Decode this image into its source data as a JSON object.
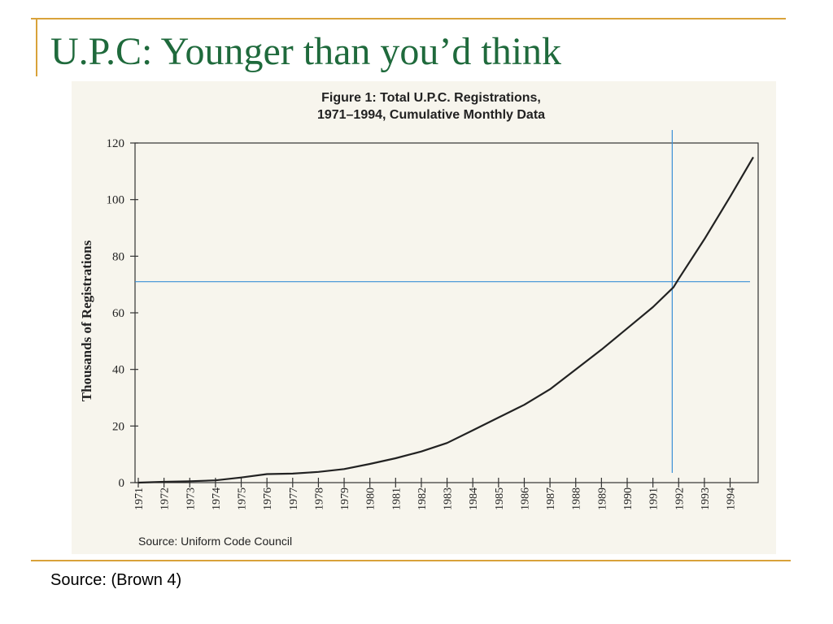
{
  "slide": {
    "title": "U.P.C: Younger than you’d think",
    "source": "Source: (Brown 4)"
  },
  "colors": {
    "title": "#1f6a3c",
    "rule": "#d9a23a",
    "line": "#222222",
    "reference": "#3a8fd6",
    "panel": "#f7f5ed"
  },
  "chart_data": {
    "type": "line",
    "title_lines": [
      "Figure 1: Total U.P.C. Registrations,",
      "1971–1994, Cumulative Monthly Data"
    ],
    "ylabel": "Thousands of Registrations",
    "xlabel": "",
    "source": "Source: Uniform Code Council",
    "ylim": [
      0,
      120
    ],
    "xlim": [
      1971,
      1994.9
    ],
    "yticks": [
      0,
      20,
      40,
      60,
      80,
      100,
      120
    ],
    "xticks": [
      "1971",
      "1972",
      "1973",
      "1974",
      "1975",
      "1976",
      "1977",
      "1978",
      "1979",
      "1980",
      "1981",
      "1982",
      "1983",
      "1984",
      "1985",
      "1986",
      "1987",
      "1988",
      "1989",
      "1990",
      "1991",
      "1992",
      "1993",
      "1994"
    ],
    "grid": false,
    "series": [
      {
        "x": [
          1971,
          1972,
          1973,
          1974,
          1975,
          1976,
          1977,
          1978,
          1979,
          1980,
          1981,
          1982,
          1983,
          1984,
          1985,
          1986,
          1987,
          1988,
          1989,
          1990,
          1991,
          1991.8,
          1992,
          1993,
          1994,
          1994.9
        ],
        "y": [
          0,
          0.3,
          0.5,
          0.8,
          1.8,
          3,
          3.2,
          3.8,
          4.8,
          6.6,
          8.6,
          11,
          14,
          18.5,
          23,
          27.5,
          33,
          40,
          47,
          54.5,
          62,
          69,
          72,
          86,
          101,
          115
        ]
      }
    ],
    "reference_lines": {
      "y": 71,
      "x": 1991.75
    }
  }
}
